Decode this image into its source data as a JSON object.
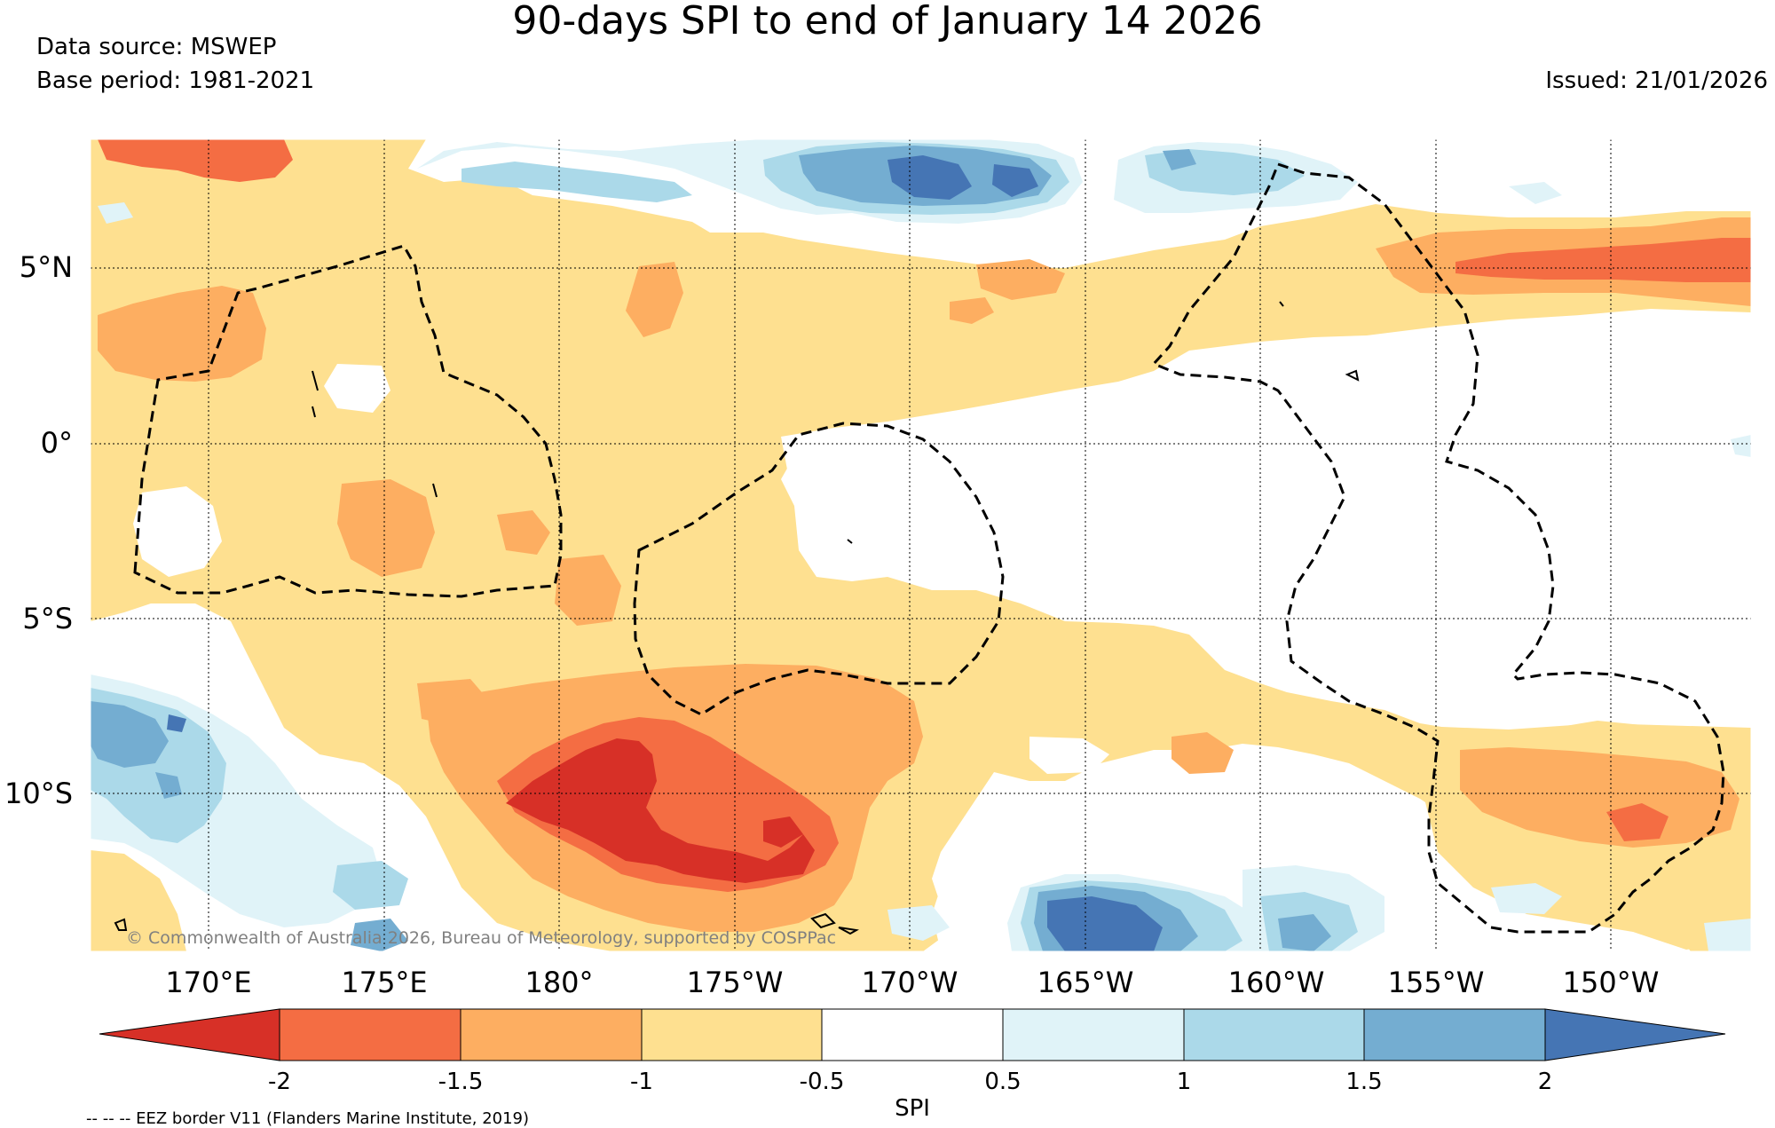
{
  "title": "90-days SPI to end of January 14 2026",
  "data_source": "Data source: MSWEP",
  "base_period": "Base period: 1981-2021",
  "issued": "Issued: 21/01/2026",
  "map": {
    "lat_labels": [
      "5°N",
      "0°",
      "5°S",
      "10°S"
    ],
    "lon_labels": [
      "170°E",
      "175°E",
      "180°",
      "175°W",
      "170°W",
      "165°W",
      "160°W",
      "155°W",
      "150°W"
    ]
  },
  "colorbar": {
    "ticks": [
      "-2",
      "-1.5",
      "-1",
      "-0.5",
      "0.5",
      "1",
      "1.5",
      "2"
    ],
    "colors": [
      "#d73027",
      "#f46d43",
      "#fdae61",
      "#fee090",
      "#ffffff",
      "#e0f3f8",
      "#abd9e9",
      "#74add1",
      "#4575b4"
    ],
    "label": "SPI"
  },
  "copyright": "© Commonwealth of Australia 2026, Bureau of Meteorology, supported by COSPPac",
  "footnote": "-- -- -- EEZ border V11 (Flanders Marine Institute, 2019)"
}
